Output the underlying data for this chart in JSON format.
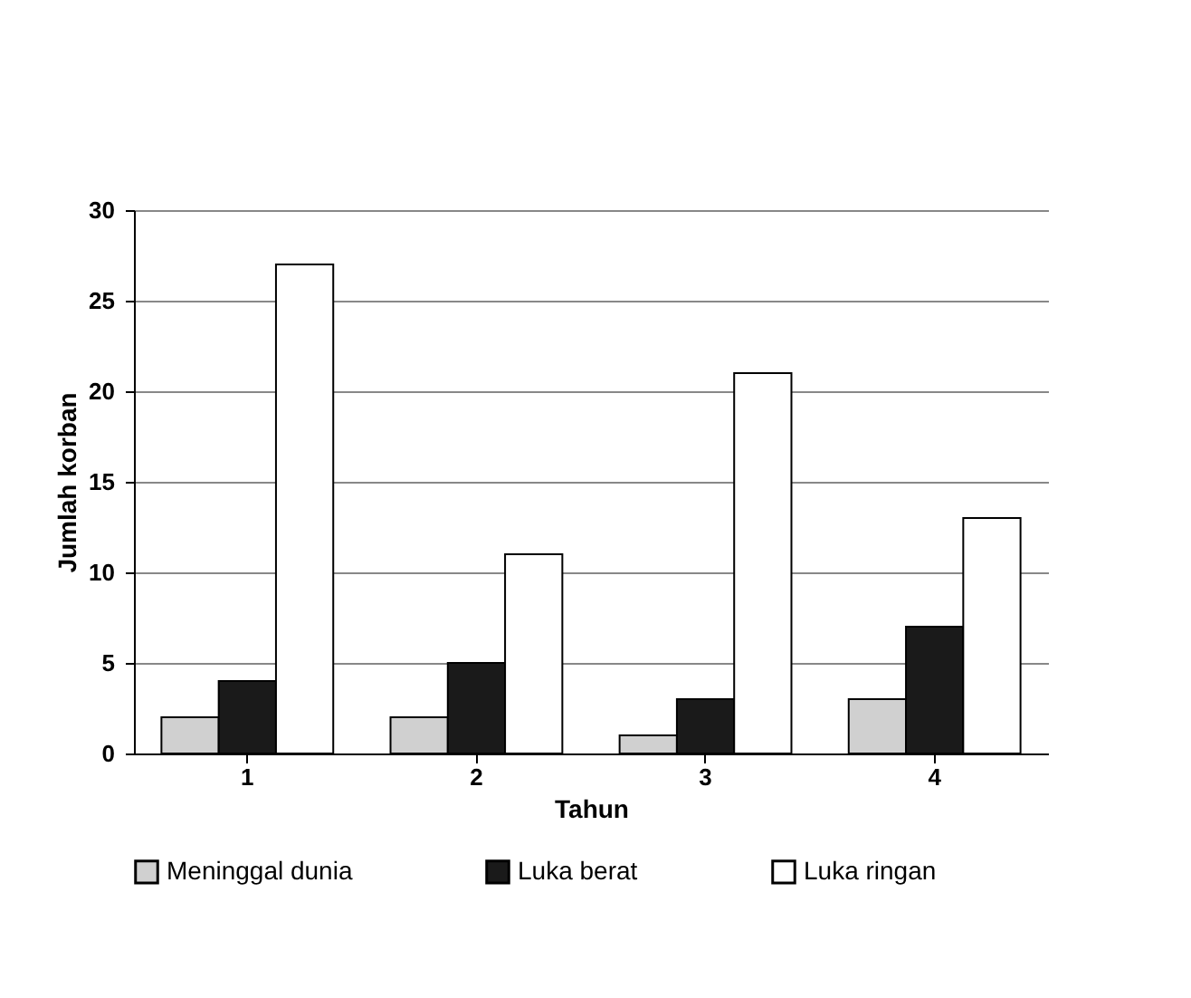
{
  "chart_data": {
    "type": "bar",
    "xlabel": "Tahun",
    "ylabel": "Jumlah korban",
    "categories": [
      "1",
      "2",
      "3",
      "4"
    ],
    "series": [
      {
        "name": "Meninggal dunia",
        "color": "#d0d0d0",
        "values": [
          2,
          2,
          1,
          3
        ]
      },
      {
        "name": "Luka berat",
        "color": "#1a1a1a",
        "values": [
          4,
          5,
          3,
          7
        ]
      },
      {
        "name": "Luka ringan",
        "color": "#ffffff",
        "values": [
          27,
          11,
          21,
          13
        ]
      }
    ],
    "ylim": [
      0,
      30
    ],
    "yticks": [
      0,
      5,
      10,
      15,
      20,
      25,
      30
    ],
    "grid": "y",
    "legend": "bottom"
  }
}
